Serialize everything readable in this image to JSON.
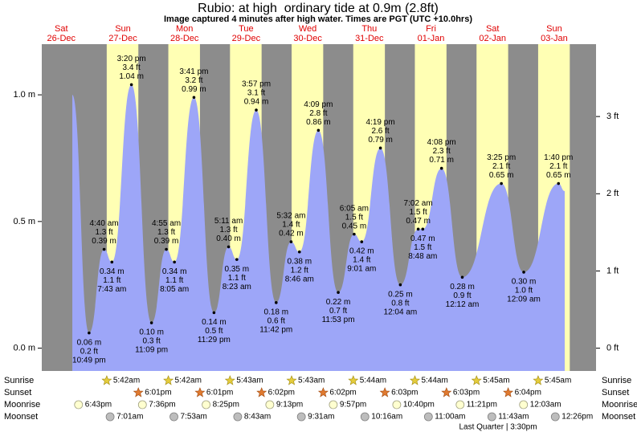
{
  "chart_data": {
    "type": "tide",
    "title": "Rubio: at high  ordinary tide at 0.9m (2.8ft)",
    "subtitle": "Image captured 4 minutes after high water. Times are PGT (UTC +10.0hrs)",
    "days": [
      "Sat",
      "Sun",
      "Mon",
      "Tue",
      "Wed",
      "Thu",
      "Fri",
      "Sat",
      "Sun"
    ],
    "dates": [
      "26-Dec",
      "27-Dec",
      "28-Dec",
      "29-Dec",
      "30-Dec",
      "31-Dec",
      "01-Jan",
      "02-Jan",
      "03-Jan"
    ],
    "xlim": [
      4.4,
      220.3
    ],
    "ylim": [
      -0.09,
      1.2
    ],
    "yticks": [
      {
        "value": 1.0,
        "label": "1.0 m"
      },
      {
        "value": 0.5,
        "label": "0.5 m"
      },
      {
        "value": 0.0,
        "label": "0.0 m"
      }
    ],
    "y2lim": [
      -0.295,
      3.937
    ],
    "y2ticks": [
      {
        "value": 3,
        "label": "3 ft"
      },
      {
        "value": 2,
        "label": "2 ft"
      },
      {
        "value": 1,
        "label": "1 ft"
      },
      {
        "value": 0,
        "label": "0 ft"
      }
    ],
    "night_color": "#8c8c8c",
    "day_color": "#ffffb4",
    "series": [
      {
        "color": "#9da6f8",
        "x": [
          16.3,
          22.82,
          28.67,
          31.72,
          39.33,
          47.15,
          52.92,
          56.08,
          63.68,
          71.48,
          77.18,
          80.38,
          87.95,
          95.7,
          101.53,
          104.77,
          112.15,
          119.88,
          126.08,
          129.02,
          136.32,
          144.07,
          151.03,
          152.8,
          160.13,
          168.2,
          183.42,
          192.15,
          205.67,
          208.1
        ],
        "values": [
          1.0,
          0.06,
          0.39,
          0.34,
          1.04,
          0.1,
          0.39,
          0.34,
          0.99,
          0.14,
          0.4,
          0.35,
          0.94,
          0.18,
          0.42,
          0.38,
          0.86,
          0.22,
          0.45,
          0.42,
          0.79,
          0.25,
          0.47,
          0.47,
          0.71,
          0.28,
          0.65,
          0.3,
          0.65,
          0.62
        ],
        "value_labels": [
          null,
          "0.06 m",
          "0.39 m",
          "0.34 m",
          "1.04 m",
          "0.10 m",
          "0.39 m",
          "0.34 m",
          "0.99 m",
          "0.14 m",
          "0.40 m",
          "0.35 m",
          "0.94 m",
          "0.18 m",
          "0.42 m",
          "0.38 m",
          "0.86 m",
          "0.22 m",
          "0.45 m",
          "0.42 m",
          "0.79 m",
          "0.25 m",
          "0.47 m",
          "0.47 m",
          "0.71 m",
          "0.28 m",
          "0.65 m",
          "0.30 m",
          "0.65 m",
          null
        ],
        "ft_labels": [
          null,
          "0.2 ft",
          "1.3 ft",
          "1.1 ft",
          "3.4 ft",
          "0.3 ft",
          "1.3 ft",
          "1.1 ft",
          "3.2 ft",
          "0.5 ft",
          "1.3 ft",
          "1.1 ft",
          "3.1 ft",
          "0.6 ft",
          "1.4 ft",
          "1.2 ft",
          "2.8 ft",
          "0.7 ft",
          "1.5 ft",
          "1.4 ft",
          "2.6 ft",
          "0.8 ft",
          "1.5 ft",
          "1.5 ft",
          "2.3 ft",
          "0.9 ft",
          "2.1 ft",
          "1.0 ft",
          "2.1 ft",
          null
        ],
        "time_labels": [
          null,
          "10:49 pm",
          "4:40 am",
          "7:43 am",
          "3:20 pm",
          "11:09 pm",
          "4:55 am",
          "8:05 am",
          "3:41 pm",
          "11:29 pm",
          "5:11 am",
          "8:23 am",
          "3:57 pm",
          "11:42 pm",
          "5:32 am",
          "8:46 am",
          "4:09 pm",
          "11:53 pm",
          "6:05 am",
          "9:01 am",
          "4:19 pm",
          "12:04 am",
          "7:02 am",
          "8:48 am",
          "4:08 pm",
          "12:12 am",
          "3:25 pm",
          "12:09 am",
          "1:40 pm",
          null
        ]
      }
    ],
    "sun_moon": [
      {
        "name": "Sunrise",
        "times": [
          "5:42am",
          "5:42am",
          "5:43am",
          "5:43am",
          "5:44am",
          "5:44am",
          "5:45am",
          "5:45am"
        ],
        "x": [
          29.7,
          53.7,
          77.72,
          101.72,
          125.73,
          149.73,
          173.75,
          197.75
        ]
      },
      {
        "name": "Sunset",
        "times": [
          "6:01pm",
          "6:01pm",
          "6:02pm",
          "6:02pm",
          "6:03pm",
          "6:03pm",
          "6:04pm"
        ],
        "x": [
          42.02,
          66.02,
          90.03,
          114.03,
          138.05,
          162.05,
          186.07
        ]
      },
      {
        "name": "Moonrise",
        "times": [
          "6:43pm",
          "7:36pm",
          "8:25pm",
          "9:13pm",
          "9:57pm",
          "10:40pm",
          "11:21pm",
          "12:03am"
        ],
        "x": [
          18.72,
          43.6,
          68.42,
          93.22,
          117.95,
          142.67,
          167.35,
          192.05
        ]
      },
      {
        "name": "Moonset",
        "times": [
          "7:01am",
          "7:53am",
          "8:43am",
          "9:31am",
          "10:16am",
          "11:00am",
          "11:43am",
          "12:26pm"
        ],
        "x": [
          31.02,
          55.88,
          80.72,
          105.52,
          130.27,
          155.0,
          179.72,
          204.43
        ]
      }
    ],
    "moon_phase": "Last Quarter | 3:30pm"
  }
}
